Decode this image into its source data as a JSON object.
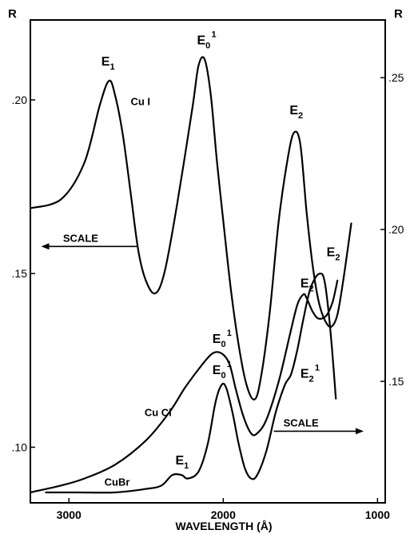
{
  "chart_data": {
    "type": "line",
    "xlabel": "WAVELENGTH (Å)",
    "x_reversed": true,
    "xlim": [
      3250,
      950
    ],
    "x_ticks": [
      {
        "value": 3000,
        "label": "3000"
      },
      {
        "value": 2000,
        "label": "2000"
      },
      {
        "value": 1000,
        "label": "1000"
      }
    ],
    "left_axis": {
      "label": "R",
      "ylim": [
        0.084,
        0.223
      ],
      "ticks": [
        {
          "value": 0.1,
          "label": ".10"
        },
        {
          "value": 0.15,
          "label": ".15"
        },
        {
          "value": 0.2,
          "label": ".20"
        }
      ]
    },
    "right_axis": {
      "label": "R",
      "ylim": [
        0.11,
        0.269
      ],
      "ticks": [
        {
          "value": 0.15,
          "label": ".15"
        },
        {
          "value": 0.2,
          "label": ".20"
        },
        {
          "value": 0.25,
          "label": ".25"
        }
      ]
    },
    "series": [
      {
        "name": "CuI",
        "axis": "right",
        "points": [
          [
            3250,
            0.207
          ],
          [
            3050,
            0.21
          ],
          [
            2900,
            0.222
          ],
          [
            2800,
            0.241
          ],
          [
            2740,
            0.249
          ],
          [
            2700,
            0.244
          ],
          [
            2650,
            0.231
          ],
          [
            2600,
            0.212
          ],
          [
            2550,
            0.193
          ],
          [
            2500,
            0.183
          ],
          [
            2440,
            0.179
          ],
          [
            2380,
            0.186
          ],
          [
            2300,
            0.208
          ],
          [
            2200,
            0.24
          ],
          [
            2160,
            0.254
          ],
          [
            2120,
            0.256
          ],
          [
            2080,
            0.244
          ],
          [
            2040,
            0.222
          ],
          [
            2000,
            0.203
          ],
          [
            1950,
            0.18
          ],
          [
            1900,
            0.162
          ],
          [
            1850,
            0.149
          ],
          [
            1800,
            0.144
          ],
          [
            1760,
            0.15
          ],
          [
            1700,
            0.172
          ],
          [
            1640,
            0.203
          ],
          [
            1580,
            0.224
          ],
          [
            1540,
            0.232
          ],
          [
            1500,
            0.228
          ],
          [
            1460,
            0.206
          ],
          [
            1420,
            0.188
          ],
          [
            1380,
            0.176
          ],
          [
            1340,
            0.17
          ],
          [
            1300,
            0.168
          ],
          [
            1260,
            0.172
          ],
          [
            1220,
            0.184
          ],
          [
            1170,
            0.202
          ]
        ]
      },
      {
        "name": "CuCl",
        "axis": "left",
        "points": [
          [
            3250,
            0.087
          ],
          [
            3050,
            0.089
          ],
          [
            2900,
            0.091
          ],
          [
            2700,
            0.095
          ],
          [
            2500,
            0.102
          ],
          [
            2350,
            0.11
          ],
          [
            2250,
            0.117
          ],
          [
            2150,
            0.123
          ],
          [
            2070,
            0.127
          ],
          [
            2010,
            0.127
          ],
          [
            1960,
            0.124
          ],
          [
            1920,
            0.117
          ],
          [
            1870,
            0.109
          ],
          [
            1820,
            0.104
          ],
          [
            1780,
            0.104
          ],
          [
            1720,
            0.108
          ],
          [
            1640,
            0.119
          ],
          [
            1570,
            0.132
          ],
          [
            1520,
            0.141
          ],
          [
            1480,
            0.144
          ],
          [
            1460,
            0.143
          ],
          [
            1420,
            0.139
          ],
          [
            1380,
            0.137
          ],
          [
            1330,
            0.138
          ],
          [
            1290,
            0.142
          ],
          [
            1260,
            0.148
          ]
        ]
      },
      {
        "name": "CuBr",
        "axis": "left",
        "points": [
          [
            3150,
            0.087
          ],
          [
            2950,
            0.087
          ],
          [
            2700,
            0.087
          ],
          [
            2500,
            0.088
          ],
          [
            2400,
            0.089
          ],
          [
            2330,
            0.092
          ],
          [
            2270,
            0.092
          ],
          [
            2230,
            0.091
          ],
          [
            2160,
            0.093
          ],
          [
            2100,
            0.101
          ],
          [
            2050,
            0.113
          ],
          [
            2010,
            0.118
          ],
          [
            1980,
            0.117
          ],
          [
            1940,
            0.11
          ],
          [
            1900,
            0.101
          ],
          [
            1860,
            0.094
          ],
          [
            1820,
            0.091
          ],
          [
            1780,
            0.092
          ],
          [
            1720,
            0.099
          ],
          [
            1660,
            0.11
          ],
          [
            1600,
            0.118
          ],
          [
            1560,
            0.121
          ],
          [
            1520,
            0.128
          ],
          [
            1480,
            0.137
          ],
          [
            1440,
            0.145
          ],
          [
            1400,
            0.149
          ],
          [
            1370,
            0.15
          ],
          [
            1350,
            0.149
          ],
          [
            1330,
            0.144
          ],
          [
            1300,
            0.131
          ],
          [
            1270,
            0.114
          ]
        ]
      }
    ],
    "annotations": [
      {
        "text": "Cu I",
        "x": 2600,
        "y": 0.241,
        "axis": "right"
      },
      {
        "text": "E",
        "sub": "1",
        "x": 2790,
        "y": 0.254,
        "axis": "right"
      },
      {
        "text": "E",
        "sub": "0",
        "sup": "1",
        "x": 2170,
        "y": 0.261,
        "axis": "right"
      },
      {
        "text": "E",
        "sub": "2",
        "x": 1570,
        "y": 0.238,
        "axis": "right"
      },
      {
        "text": "SCALE",
        "x": 2810,
        "y": 0.196,
        "axis": "right",
        "arrow": "left"
      },
      {
        "text": "E",
        "sub": "2",
        "x": 1330,
        "y": 0.155,
        "axis": "left"
      },
      {
        "text": "E",
        "sub": "2",
        "x": 1500,
        "y": 0.146,
        "axis": "left"
      },
      {
        "text": "E",
        "sub": "0",
        "sup": "1",
        "x": 2070,
        "y": 0.13,
        "axis": "left"
      },
      {
        "text": "E",
        "sub": "0",
        "sup": "1",
        "x": 2070,
        "y": 0.121,
        "axis": "left"
      },
      {
        "text": "E",
        "sub": "2",
        "sup": "1",
        "x": 1500,
        "y": 0.12,
        "axis": "left"
      },
      {
        "text": "Cu Cl",
        "x": 2510,
        "y": 0.109,
        "axis": "left"
      },
      {
        "text": "SCALE",
        "x": 1610,
        "y": 0.106,
        "axis": "left",
        "arrow": "right"
      },
      {
        "text": "E",
        "sub": "1",
        "x": 2310,
        "y": 0.095,
        "axis": "left"
      },
      {
        "text": "CuBr",
        "x": 2770,
        "y": 0.089,
        "axis": "left"
      }
    ]
  }
}
